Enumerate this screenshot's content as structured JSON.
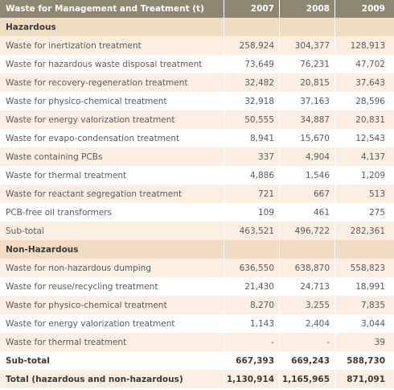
{
  "header": {
    "title": "Waste for Management and Treatment (t)",
    "years": [
      "2007",
      "2008",
      "2009"
    ]
  },
  "sections": [
    {
      "title": "Hazardous",
      "rows": [
        {
          "label": "Waste for inertization treatment",
          "values": [
            "258,924",
            "304,377",
            "128,913"
          ]
        },
        {
          "label": "Waste for hazardous waste disposal treatment",
          "values": [
            "73,649",
            "76,231",
            "47,702"
          ]
        },
        {
          "label": "Waste for recovery-regeneration treatment",
          "values": [
            "32,482",
            "20,815",
            "37,643"
          ]
        },
        {
          "label": "Waste for physico-chemical treatment",
          "values": [
            "32,918",
            "37,163",
            "28,596"
          ]
        },
        {
          "label": "Waste for energy valorization treatment",
          "values": [
            "50,555",
            "34,887",
            "20,831"
          ]
        },
        {
          "label": "Waste for evapo-condensation treatment",
          "values": [
            "8,941",
            "15,670",
            "12,543"
          ]
        },
        {
          "label": "Waste containing PCBs",
          "values": [
            "337",
            "4,904",
            "4,137"
          ]
        },
        {
          "label": "Waste for thermal treatment",
          "values": [
            "4,886",
            "1,546",
            "1,209"
          ]
        },
        {
          "label": "Waste for reactant segregation treatment",
          "values": [
            "721",
            "667",
            "513"
          ]
        },
        {
          "label": "PCB-free oil transformers",
          "values": [
            "109",
            "461",
            "275"
          ]
        }
      ],
      "subtotal": {
        "label": "Sub-total",
        "values": [
          "463,521",
          "496,722",
          "282,361"
        ]
      }
    },
    {
      "title": "Non-Hazardous",
      "rows": [
        {
          "label": "Waste for non-hazardous dumping",
          "values": [
            "636,550",
            "638,870",
            "558,823"
          ]
        },
        {
          "label": "Waste for reuse/recycling treatment",
          "values": [
            "21,430",
            "24,713",
            "18,991"
          ]
        },
        {
          "label": "Waste for physico-chemical treatment",
          "values": [
            "8,270",
            "3,255",
            "7,835"
          ]
        },
        {
          "label": "Waste for energy valorization treatment",
          "values": [
            "1,143",
            "2,404",
            "3,044"
          ]
        },
        {
          "label": "Waste for thermal treatment",
          "values": [
            "-",
            "-",
            "39"
          ]
        }
      ],
      "subtotal": {
        "label": "Sub-total",
        "values": [
          "667,393",
          "669,243",
          "588,730"
        ]
      }
    }
  ],
  "total": {
    "label": "Total (hazardous and non-hazardous)",
    "values": [
      "1,130,914",
      "1,165,965",
      "871,091"
    ]
  }
}
